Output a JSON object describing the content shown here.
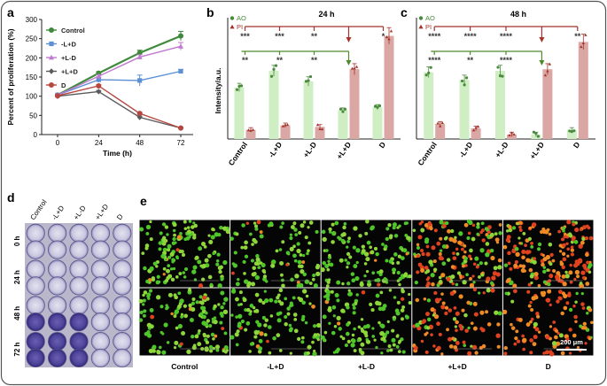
{
  "panel_labels": {
    "a": "a",
    "b": "b",
    "c": "c",
    "d": "d",
    "e": "e"
  },
  "chart_data": [
    {
      "panel": "a",
      "type": "line",
      "xlabel": "Time (h)",
      "ylabel": "Percent of proliferation (%)",
      "x": [
        0,
        24,
        48,
        72
      ],
      "xticks": [
        "0",
        "24",
        "48",
        "72"
      ],
      "ylim": [
        0,
        300
      ],
      "yticks": [
        "0",
        "50",
        "100",
        "150",
        "200",
        "250",
        "300"
      ],
      "series": [
        {
          "name": "Control",
          "color": "#3f8a3a",
          "marker": "circle",
          "values": [
            103,
            160,
            213,
            257
          ],
          "errors": [
            3,
            4,
            7,
            12
          ]
        },
        {
          "name": "-L+D",
          "color": "#5b8fd6",
          "marker": "square",
          "values": [
            103,
            143,
            141,
            165
          ],
          "errors": [
            3,
            7,
            14,
            5
          ]
        },
        {
          "name": "+L-D",
          "color": "#c07ad0",
          "marker": "triangle",
          "values": [
            103,
            152,
            202,
            230
          ],
          "errors": [
            3,
            4,
            6,
            10
          ]
        },
        {
          "name": "+L+D",
          "color": "#5a5a5a",
          "marker": "diamond",
          "values": [
            100,
            112,
            45,
            17
          ],
          "errors": [
            2,
            3,
            3,
            2
          ]
        },
        {
          "name": "D",
          "color": "#b5473f",
          "marker": "circle",
          "values": [
            101,
            127,
            55,
            17
          ],
          "errors": [
            2,
            3,
            3,
            2
          ]
        }
      ]
    },
    {
      "panel": "b",
      "type": "bar",
      "title": "24 h",
      "ylabel": "Intensity/a.u.",
      "categories": [
        "Control",
        "-L+D",
        "+L-D",
        "+L+D",
        "D"
      ],
      "ylim": [
        0,
        80
      ],
      "legend": [
        "AO",
        "PI"
      ],
      "series": [
        {
          "name": "AO",
          "color": "#cfeec3",
          "dot": "#4a8a3c",
          "values": [
            34,
            45,
            38,
            19,
            21
          ]
        },
        {
          "name": "PI",
          "color": "#dba7a4",
          "dot": "#a5322b",
          "values": [
            6,
            9,
            8,
            46,
            68
          ]
        }
      ],
      "sig_red": [
        "***",
        "***",
        "**",
        "",
        "*"
      ],
      "sig_green": [
        "**",
        "**",
        "**",
        ""
      ]
    },
    {
      "panel": "c",
      "type": "bar",
      "title": "48 h",
      "categories": [
        "Control",
        "-L+D",
        "+L-D",
        "+L+D",
        "D"
      ],
      "ylim": [
        0,
        80
      ],
      "legend": [
        "AO",
        "PI"
      ],
      "series": [
        {
          "name": "AO",
          "color": "#cfeec3",
          "dot": "#4a8a3c",
          "values": [
            44,
            39,
            45,
            3,
            6
          ]
        },
        {
          "name": "PI",
          "color": "#dba7a4",
          "dot": "#a5322b",
          "values": [
            10,
            7,
            3,
            46,
            64
          ]
        }
      ],
      "sig_red": [
        "****",
        "****",
        "****",
        "",
        "**"
      ],
      "sig_green": [
        "****",
        "**",
        "****",
        ""
      ]
    }
  ],
  "panel_d": {
    "columns": [
      "Control",
      "-L+D",
      "+L-D",
      "+L+D",
      "D"
    ],
    "rows": [
      "0 h",
      "24 h",
      "48 h",
      "72 h"
    ]
  },
  "panel_e": {
    "columns": [
      "Control",
      "-L+D",
      "+L-D",
      "+L+D",
      "D"
    ],
    "scale_bar": "200 μm"
  }
}
